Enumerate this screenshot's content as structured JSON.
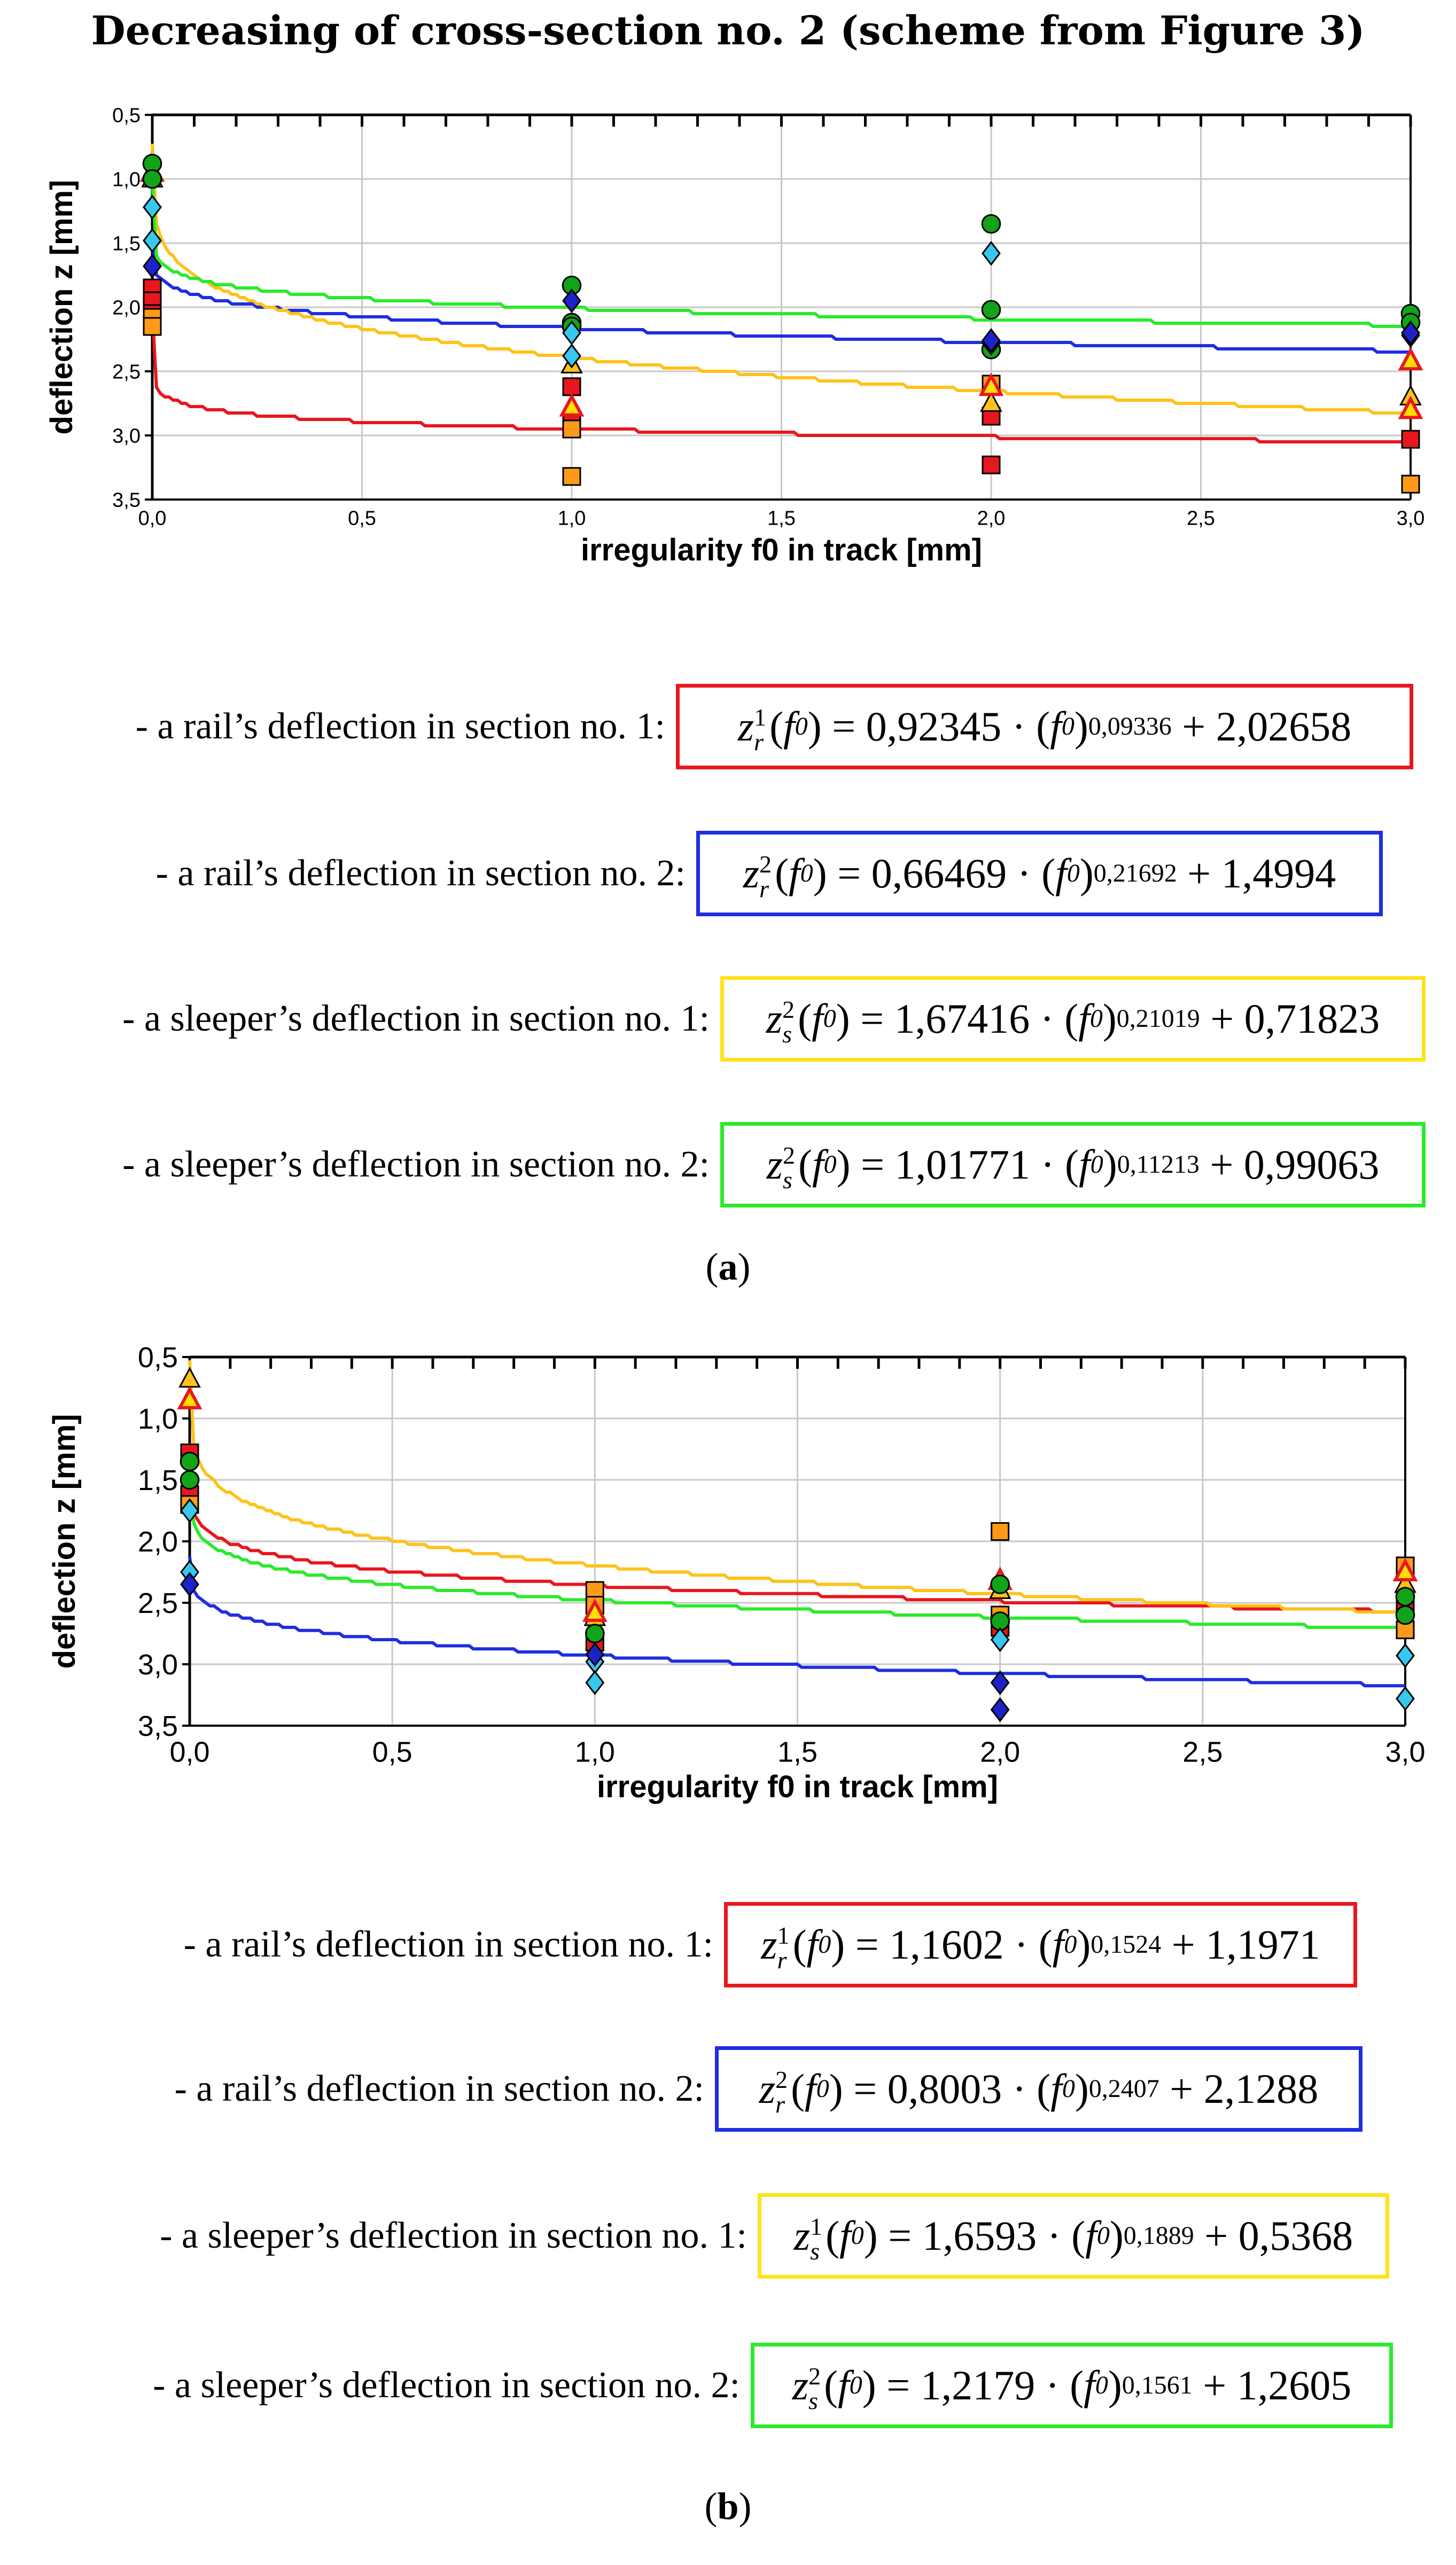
{
  "title": "Decreasing of cross-section no. 2 (scheme from Figure 3)",
  "chart_data": [
    {
      "type": "scatter",
      "panel": "a",
      "xlabel": "irregularity f0 in track [mm]",
      "ylabel": "deflection z [mm]",
      "xlim": [
        0,
        3
      ],
      "ylim": [
        0.5,
        3.5
      ],
      "y_inverted": true,
      "grid": true,
      "x_tick_labels": [
        "0,0",
        "0,5",
        "1,0",
        "1,5",
        "2,0",
        "2,5",
        "3,0"
      ],
      "y_tick_labels": [
        "0,5",
        "1,0",
        "1,5",
        "2,0",
        "2,5",
        "3,0",
        "3,5"
      ],
      "fit_curves": [
        {
          "name": "rail section 1",
          "color": "#e8171d",
          "a": 0.92345,
          "b": 0.09336,
          "c": 2.02658
        },
        {
          "name": "rail section 2",
          "color": "#1f2ee0",
          "a": 0.66469,
          "b": 0.21692,
          "c": 1.4994
        },
        {
          "name": "sleeper section 1",
          "color": "#ffc21a",
          "a": 1.67416,
          "b": 0.21019,
          "c": 0.71823
        },
        {
          "name": "sleeper section 2",
          "color": "#2bea2b",
          "a": 1.01771,
          "b": 0.11213,
          "c": 0.99063
        }
      ],
      "series": [
        {
          "name": "red squares",
          "marker": "square",
          "color": "#e8171d",
          "points": [
            [
              0,
              1.85
            ],
            [
              0,
              1.95
            ],
            [
              0,
              2.05
            ],
            [
              1,
              2.62
            ],
            [
              1,
              2.88
            ],
            [
              2,
              2.85
            ],
            [
              2,
              3.23
            ],
            [
              3,
              3.03
            ]
          ]
        },
        {
          "name": "orange squares",
          "marker": "square",
          "color": "#ff9a18",
          "points": [
            [
              0,
              2.08
            ],
            [
              0,
              2.15
            ],
            [
              1,
              2.95
            ],
            [
              1,
              3.32
            ],
            [
              2,
              2.6
            ],
            [
              3,
              3.38
            ]
          ]
        },
        {
          "name": "yellow triangles",
          "marker": "triangle",
          "color": "#ffc21a",
          "points": [
            [
              0,
              1.0
            ],
            [
              1,
              2.45
            ],
            [
              2,
              2.75
            ],
            [
              3,
              2.7
            ]
          ]
        },
        {
          "name": "red-outlined triangles",
          "marker": "triangle-red",
          "color": "#ffe000",
          "points": [
            [
              0,
              0.95
            ],
            [
              1,
              2.78
            ],
            [
              2,
              2.62
            ],
            [
              3,
              2.42
            ],
            [
              3,
              2.8
            ]
          ]
        },
        {
          "name": "green circles",
          "marker": "circle",
          "color": "#12a318",
          "points": [
            [
              0,
              0.88
            ],
            [
              0,
              1.0
            ],
            [
              1,
              1.83
            ],
            [
              1,
              2.12
            ],
            [
              1,
              2.15
            ],
            [
              2,
              1.35
            ],
            [
              2,
              2.02
            ],
            [
              2,
              2.33
            ],
            [
              3,
              2.05
            ],
            [
              3,
              2.12
            ]
          ]
        },
        {
          "name": "cyan diamonds",
          "marker": "diamond",
          "color": "#38c7ee",
          "points": [
            [
              0,
              1.22
            ],
            [
              0,
              1.48
            ],
            [
              1,
              2.2
            ],
            [
              1,
              2.38
            ],
            [
              2,
              1.58
            ],
            [
              2,
              2.28
            ],
            [
              3,
              2.22
            ]
          ]
        },
        {
          "name": "blue diamonds",
          "marker": "diamond",
          "color": "#1a22c8",
          "points": [
            [
              0,
              1.68
            ],
            [
              1,
              1.95
            ],
            [
              2,
              2.26
            ],
            [
              3,
              2.2
            ]
          ]
        }
      ]
    },
    {
      "type": "scatter",
      "panel": "b",
      "xlabel": "irregularity f0 in track [mm]",
      "ylabel": "deflection z [mm]",
      "xlim": [
        0,
        3
      ],
      "ylim": [
        0.5,
        3.5
      ],
      "y_inverted": true,
      "grid": true,
      "x_tick_labels": [
        "0,0",
        "0,5",
        "1,0",
        "1,5",
        "2,0",
        "2,5",
        "3,0"
      ],
      "y_tick_labels": [
        "0,5",
        "1,0",
        "1,5",
        "2,0",
        "2,5",
        "3,0",
        "3,5"
      ],
      "fit_curves": [
        {
          "name": "rail section 1",
          "color": "#e8171d",
          "a": 1.1602,
          "b": 0.1524,
          "c": 1.1971
        },
        {
          "name": "rail section 2",
          "color": "#1f2ee0",
          "a": 0.8003,
          "b": 0.2407,
          "c": 2.1288
        },
        {
          "name": "sleeper section 1",
          "color": "#ffc21a",
          "a": 1.6593,
          "b": 0.1889,
          "c": 0.5368
        },
        {
          "name": "sleeper section 2",
          "color": "#2bea2b",
          "a": 1.2179,
          "b": 0.1561,
          "c": 1.2605
        }
      ],
      "series": [
        {
          "name": "red squares",
          "marker": "square",
          "color": "#e8171d",
          "points": [
            [
              0,
              1.28
            ],
            [
              0,
              1.62
            ],
            [
              1,
              2.82
            ],
            [
              2,
              2.7
            ],
            [
              3,
              2.5
            ]
          ]
        },
        {
          "name": "orange squares",
          "marker": "square",
          "color": "#ff9a18",
          "points": [
            [
              0,
              1.7
            ],
            [
              1,
              2.4
            ],
            [
              1,
              2.52
            ],
            [
              2,
              1.92
            ],
            [
              2,
              2.6
            ],
            [
              3,
              2.2
            ],
            [
              3,
              2.72
            ]
          ]
        },
        {
          "name": "yellow triangles",
          "marker": "triangle",
          "color": "#ffc21a",
          "points": [
            [
              0,
              0.68
            ],
            [
              1,
              2.62
            ],
            [
              2,
              2.4
            ],
            [
              3,
              2.35
            ]
          ]
        },
        {
          "name": "red-outlined triangles",
          "marker": "triangle-red",
          "color": "#ffe000",
          "points": [
            [
              0,
              0.85
            ],
            [
              1,
              2.58
            ],
            [
              2,
              2.32
            ],
            [
              3,
              2.25
            ]
          ]
        },
        {
          "name": "green circles",
          "marker": "circle",
          "color": "#12a318",
          "points": [
            [
              0,
              1.35
            ],
            [
              0,
              1.5
            ],
            [
              1,
              2.75
            ],
            [
              2,
              2.35
            ],
            [
              2,
              2.65
            ],
            [
              3,
              2.45
            ],
            [
              3,
              2.6
            ]
          ]
        },
        {
          "name": "cyan diamonds",
          "marker": "diamond",
          "color": "#38c7ee",
          "points": [
            [
              0,
              1.75
            ],
            [
              0,
              2.25
            ],
            [
              1,
              2.98
            ],
            [
              1,
              3.15
            ],
            [
              2,
              2.8
            ],
            [
              3,
              2.93
            ],
            [
              3,
              3.28
            ]
          ]
        },
        {
          "name": "blue diamonds",
          "marker": "diamond",
          "color": "#1a22c8",
          "points": [
            [
              0,
              2.35
            ],
            [
              1,
              2.92
            ],
            [
              2,
              3.15
            ],
            [
              2,
              3.37
            ]
          ]
        }
      ]
    }
  ],
  "equations_a": [
    {
      "label": "- a rail’s deflection in section no. 1:",
      "lhs_var": "z",
      "lhs_sup": "1",
      "lhs_sub": "r",
      "coef": "0,92345",
      "exp": "0,09336",
      "const": "2,02658",
      "color": "#e8171d"
    },
    {
      "label": "- a rail’s deflection in section no. 2:",
      "lhs_var": "z",
      "lhs_sup": "2",
      "lhs_sub": "r",
      "coef": "0,66469",
      "exp": "0,21692",
      "const": "1,4994",
      "color": "#1f2ee0"
    },
    {
      "label": "- a sleeper’s deflection in section no. 1:",
      "lhs_var": "z",
      "lhs_sup": "2",
      "lhs_sub": "s",
      "coef": "1,67416",
      "exp": "0,21019",
      "const": "0,71823",
      "color": "#ffe31a"
    },
    {
      "label": "- a sleeper’s deflection in section no. 2:",
      "lhs_var": "z",
      "lhs_sup": "2",
      "lhs_sub": "s",
      "coef": "1,01771",
      "exp": "0,11213",
      "const": "0,99063",
      "color": "#2bea2b"
    }
  ],
  "equations_b": [
    {
      "label": "- a rail’s deflection in section no. 1:",
      "lhs_var": "z",
      "lhs_sup": "1",
      "lhs_sub": "r",
      "coef": "1,1602",
      "exp": "0,1524",
      "const": "1,1971",
      "color": "#e8171d"
    },
    {
      "label": "- a rail’s deflection in section no. 2:",
      "lhs_var": "z",
      "lhs_sup": "2",
      "lhs_sub": "r",
      "coef": "0,8003",
      "exp": "0,2407",
      "const": "2,1288",
      "color": "#1f2ee0"
    },
    {
      "label": "- a sleeper’s deflection in section no. 1:",
      "lhs_var": "z",
      "lhs_sup": "1",
      "lhs_sub": "s",
      "coef": "1,6593",
      "exp": "0,1889",
      "const": "0,5368",
      "color": "#ffe31a"
    },
    {
      "label": "- a sleeper’s deflection in section no. 2:",
      "lhs_var": "z",
      "lhs_sup": "2",
      "lhs_sub": "s",
      "coef": "1,2179",
      "exp": "0,1561",
      "const": "1,2605",
      "color": "#2bea2b"
    }
  ],
  "panel_labels": {
    "a": "a",
    "b": "b"
  },
  "eq_fixed": {
    "func_var": "f",
    "func_sub": "0",
    "equals": "=",
    "dot": "·",
    "plus": "+"
  }
}
